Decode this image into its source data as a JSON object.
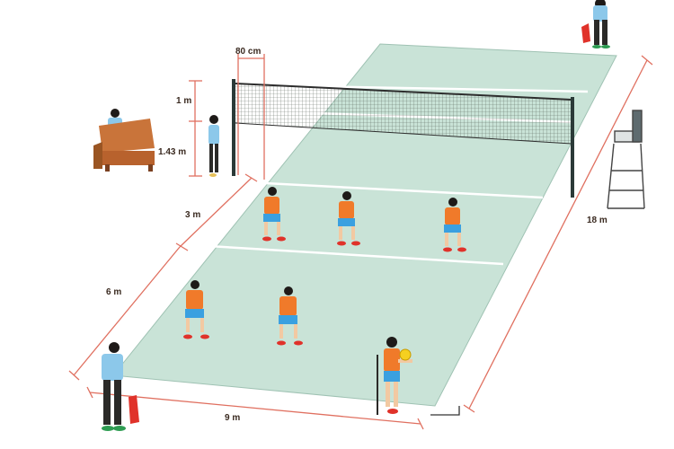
{
  "diagram": {
    "subject": "volleyball court dimensions",
    "labels": {
      "antenna_spacing": "80 cm",
      "net_band": "1 m",
      "net_lower": "1.43 m",
      "attack_zone": "3 m",
      "back_zone": "6 m",
      "court_width": "9 m",
      "court_length": "18 m"
    },
    "colors": {
      "court": "#c9e3d7",
      "court_lines": "#ffffff",
      "dimension_lines": "#e07060",
      "player_shirt": "#f07a2a",
      "player_shorts": "#3aa0e0",
      "official_shirt": "#8cc8ea",
      "flag": "#e0322a",
      "ball": "#f5d020",
      "table": "#c9743a"
    },
    "icons": [
      "scorer-table-icon",
      "umpire-chair-icon",
      "line-judge-flag-icon",
      "volleyball-icon"
    ]
  }
}
